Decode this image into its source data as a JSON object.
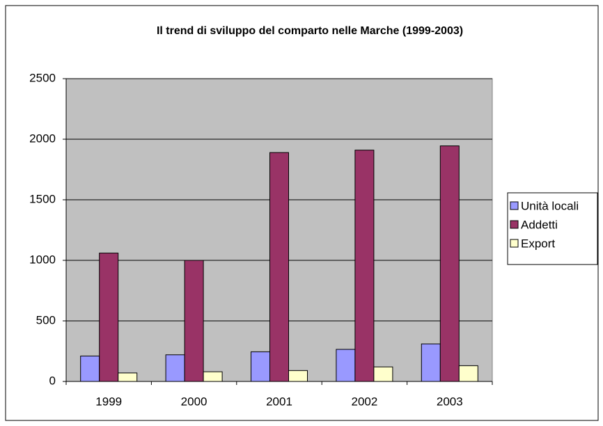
{
  "chart_data": {
    "type": "bar",
    "title": "Il trend di sviluppo del comparto nelle Marche (1999-2003)",
    "categories": [
      "1999",
      "2000",
      "2001",
      "2002",
      "2003"
    ],
    "series": [
      {
        "name": "Unità locali",
        "color": "#9999ff",
        "values": [
          210,
          220,
          245,
          265,
          310
        ]
      },
      {
        "name": "Addetti",
        "color": "#993366",
        "values": [
          1060,
          1000,
          1890,
          1910,
          1945
        ]
      },
      {
        "name": "Export",
        "color": "#ffffcc",
        "values": [
          70,
          80,
          90,
          120,
          130
        ]
      }
    ],
    "ylim": [
      0,
      2500
    ],
    "yticks": [
      0,
      500,
      1000,
      1500,
      2000,
      2500
    ],
    "grid": true,
    "legend": "right"
  }
}
